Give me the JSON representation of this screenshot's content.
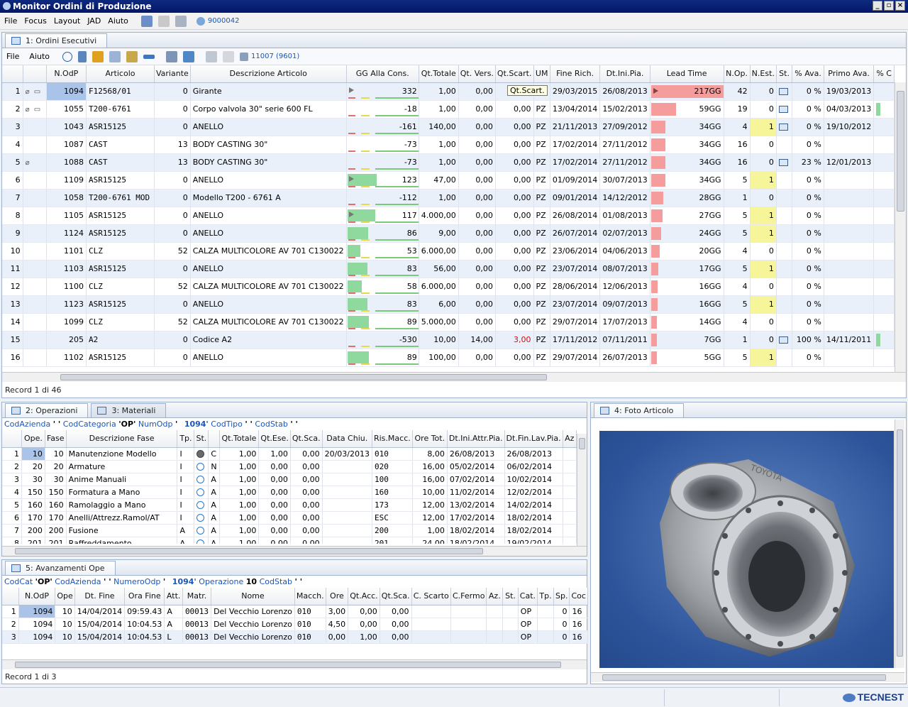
{
  "window": {
    "title": "Monitor Ordini di Produzione"
  },
  "menu": [
    "File",
    "Focus",
    "Layout",
    "JAD",
    "Aiuto"
  ],
  "menu_badge": "9000042",
  "panel1": {
    "tab": "1: Ordini Esecutivi",
    "menu": [
      "File",
      "Aiuto"
    ],
    "badge": "11007 (9601)",
    "status": "Record 1 di 46",
    "tooltip": "Qt.Scart.",
    "columns": [
      "",
      "",
      "N.OdP",
      "Articolo",
      "Variante",
      "Descrizione Articolo",
      "GG Alla Cons.",
      "Qt.Totale",
      "Qt. Vers.",
      "Qt.Scart.",
      "UM",
      "Fine Rich.",
      "Dt.Ini.Pia.",
      "Lead Time",
      "N.Op.",
      "N.Est.",
      "St.",
      "% Ava.",
      "Primo Ava.",
      "% C"
    ],
    "lead_time_sort": "1",
    "rows": [
      {
        "n": "1",
        "odp": "1094",
        "art": "F12568/01",
        "var": "0",
        "desc": "Girante",
        "gg": 332,
        "tot": "1,00",
        "vers": "0,00",
        "scart": "0,00",
        "um": "",
        "fine": "29/03/2015",
        "ini": "26/08/2013",
        "lt": "217GG",
        "ltv": 217,
        "nop": "42",
        "nest": "0",
        "st": "printer",
        "ava": "0 %",
        "primo": "19/03/2013",
        "green": false,
        "yel": false
      },
      {
        "n": "2",
        "odp": "1055",
        "art": "T200-6761",
        "var": "0",
        "desc": "Corpo valvola 30\" serie 600 FL",
        "gg": -18,
        "tot": "1,00",
        "vers": "0,00",
        "scart": "0,00",
        "um": "PZ",
        "fine": "13/04/2014",
        "ini": "15/02/2013",
        "lt": "59GG",
        "ltv": 59,
        "nop": "19",
        "nest": "0",
        "st": "printer",
        "ava": "0 %",
        "primo": "04/03/2013",
        "green": true,
        "yel": false
      },
      {
        "n": "3",
        "odp": "1043",
        "art": "ASR15125",
        "var": "0",
        "desc": "ANELLO",
        "gg": -161,
        "tot": "140,00",
        "vers": "0,00",
        "scart": "0,00",
        "um": "PZ",
        "fine": "21/11/2013",
        "ini": "27/09/2012",
        "lt": "34GG",
        "ltv": 34,
        "nop": "4",
        "nest": "1",
        "st": "printer",
        "ava": "0 %",
        "primo": "19/10/2012",
        "green": false,
        "yel": true
      },
      {
        "n": "4",
        "odp": "1087",
        "art": "CAST",
        "var": "13",
        "desc": "BODY CASTING 30\"",
        "gg": -73,
        "tot": "1,00",
        "vers": "0,00",
        "scart": "0,00",
        "um": "PZ",
        "fine": "17/02/2014",
        "ini": "27/11/2012",
        "lt": "34GG",
        "ltv": 34,
        "nop": "16",
        "nest": "0",
        "st": "",
        "ava": "0 %",
        "primo": "",
        "green": false,
        "yel": false
      },
      {
        "n": "5",
        "odp": "1088",
        "art": "CAST",
        "var": "13",
        "desc": "BODY CASTING 30\"",
        "gg": -73,
        "tot": "1,00",
        "vers": "0,00",
        "scart": "0,00",
        "um": "PZ",
        "fine": "17/02/2014",
        "ini": "27/11/2012",
        "lt": "34GG",
        "ltv": 34,
        "nop": "16",
        "nest": "0",
        "st": "printer",
        "ava": "23 %",
        "primo": "12/01/2013",
        "green": false,
        "yel": false
      },
      {
        "n": "6",
        "odp": "1109",
        "art": "ASR15125",
        "var": "0",
        "desc": "ANELLO",
        "gg": 123,
        "tot": "47,00",
        "vers": "0,00",
        "scart": "0,00",
        "um": "PZ",
        "fine": "01/09/2014",
        "ini": "30/07/2013",
        "lt": "34GG",
        "ltv": 34,
        "nop": "5",
        "nest": "1",
        "st": "",
        "ava": "0 %",
        "primo": "",
        "green": false,
        "yel": true
      },
      {
        "n": "7",
        "odp": "1058",
        "art": "T200-6761 MOD",
        "var": "0",
        "desc": "Modello T200 - 6761 A",
        "gg": -112,
        "tot": "1,00",
        "vers": "0,00",
        "scart": "0,00",
        "um": "PZ",
        "fine": "09/01/2014",
        "ini": "14/12/2012",
        "lt": "28GG",
        "ltv": 28,
        "nop": "1",
        "nest": "0",
        "st": "",
        "ava": "0 %",
        "primo": "",
        "green": false,
        "yel": false
      },
      {
        "n": "8",
        "odp": "1105",
        "art": "ASR15125",
        "var": "0",
        "desc": "ANELLO",
        "gg": 117,
        "tot": "4.000,00",
        "vers": "0,00",
        "scart": "0,00",
        "um": "PZ",
        "fine": "26/08/2014",
        "ini": "01/08/2013",
        "lt": "27GG",
        "ltv": 27,
        "nop": "5",
        "nest": "1",
        "st": "",
        "ava": "0 %",
        "primo": "",
        "green": false,
        "yel": true
      },
      {
        "n": "9",
        "odp": "1124",
        "art": "ASR15125",
        "var": "0",
        "desc": "ANELLO",
        "gg": 86,
        "tot": "9,00",
        "vers": "0,00",
        "scart": "0,00",
        "um": "PZ",
        "fine": "26/07/2014",
        "ini": "02/07/2013",
        "lt": "24GG",
        "ltv": 24,
        "nop": "5",
        "nest": "1",
        "st": "",
        "ava": "0 %",
        "primo": "",
        "green": false,
        "yel": true
      },
      {
        "n": "10",
        "odp": "1101",
        "art": "CLZ",
        "var": "52",
        "desc": "CALZA MULTICOLORE AV 701 C130022",
        "gg": 53,
        "tot": "6.000,00",
        "vers": "0,00",
        "scart": "0,00",
        "um": "PZ",
        "fine": "23/06/2014",
        "ini": "04/06/2013",
        "lt": "20GG",
        "ltv": 20,
        "nop": "4",
        "nest": "0",
        "st": "",
        "ava": "0 %",
        "primo": "",
        "green": false,
        "yel": false
      },
      {
        "n": "11",
        "odp": "1103",
        "art": "ASR15125",
        "var": "0",
        "desc": "ANELLO",
        "gg": 83,
        "tot": "56,00",
        "vers": "0,00",
        "scart": "0,00",
        "um": "PZ",
        "fine": "23/07/2014",
        "ini": "08/07/2013",
        "lt": "17GG",
        "ltv": 17,
        "nop": "5",
        "nest": "1",
        "st": "",
        "ava": "0 %",
        "primo": "",
        "green": false,
        "yel": true
      },
      {
        "n": "12",
        "odp": "1100",
        "art": "CLZ",
        "var": "52",
        "desc": "CALZA MULTICOLORE AV 701 C130022",
        "gg": 58,
        "tot": "6.000,00",
        "vers": "0,00",
        "scart": "0,00",
        "um": "PZ",
        "fine": "28/06/2014",
        "ini": "12/06/2013",
        "lt": "16GG",
        "ltv": 16,
        "nop": "4",
        "nest": "0",
        "st": "",
        "ava": "0 %",
        "primo": "",
        "green": false,
        "yel": false
      },
      {
        "n": "13",
        "odp": "1123",
        "art": "ASR15125",
        "var": "0",
        "desc": "ANELLO",
        "gg": 83,
        "tot": "6,00",
        "vers": "0,00",
        "scart": "0,00",
        "um": "PZ",
        "fine": "23/07/2014",
        "ini": "09/07/2013",
        "lt": "16GG",
        "ltv": 16,
        "nop": "5",
        "nest": "1",
        "st": "",
        "ava": "0 %",
        "primo": "",
        "green": false,
        "yel": true
      },
      {
        "n": "14",
        "odp": "1099",
        "art": "CLZ",
        "var": "52",
        "desc": "CALZA MULTICOLORE AV 701 C130022",
        "gg": 89,
        "tot": "5.000,00",
        "vers": "0,00",
        "scart": "0,00",
        "um": "PZ",
        "fine": "29/07/2014",
        "ini": "17/07/2013",
        "lt": "14GG",
        "ltv": 14,
        "nop": "4",
        "nest": "0",
        "st": "",
        "ava": "0 %",
        "primo": "",
        "green": false,
        "yel": false
      },
      {
        "n": "15",
        "odp": "205",
        "art": "A2",
        "var": "0",
        "desc": "Codice A2",
        "gg": -530,
        "tot": "10,00",
        "vers": "14,00",
        "scart": "3,00",
        "um": "PZ",
        "fine": "17/11/2012",
        "ini": "07/11/2011",
        "lt": "7GG",
        "ltv": 7,
        "nop": "1",
        "nest": "0",
        "st": "printer",
        "ava": "100 %",
        "primo": "14/11/2011",
        "green": true,
        "yel": false
      },
      {
        "n": "16",
        "odp": "1102",
        "art": "ASR15125",
        "var": "0",
        "desc": "ANELLO",
        "gg": 89,
        "tot": "100,00",
        "vers": "0,00",
        "scart": "0,00",
        "um": "PZ",
        "fine": "29/07/2014",
        "ini": "26/07/2013",
        "lt": "5GG",
        "ltv": 5,
        "nop": "5",
        "nest": "1",
        "st": "",
        "ava": "0 %",
        "primo": "",
        "green": false,
        "yel": true
      }
    ]
  },
  "panel2": {
    "tabs": [
      "2: Operazioni",
      "3: Materiali"
    ],
    "filter": [
      {
        "k": "CodAzienda",
        "v": "' '"
      },
      {
        "k": "CodCategoria",
        "v": "'OP'"
      },
      {
        "k": "NumOdp",
        "v": "'"
      },
      {
        "k": "",
        "v": "1094'"
      },
      {
        "k": "CodTipo",
        "v": "' '"
      },
      {
        "k": "CodStab",
        "v": "' '"
      }
    ],
    "columns": [
      "",
      "Ope.",
      "Fase",
      "Descrizione Fase",
      "Tp.",
      "St.",
      "",
      "Qt.Totale",
      "Qt.Ese.",
      "Qt.Sca.",
      "Data Chiu.",
      "Ris.Macc.",
      "Ore Tot.",
      "Dt.Ini.Attr.Pia.",
      "Dt.Fin.Lav.Pia.",
      "Az"
    ],
    "rows": [
      {
        "n": "1",
        "ope": "10",
        "fase": "10",
        "desc": "Manutenzione Modello",
        "tp": "I",
        "full": true,
        "st": "C",
        "tot": "1,00",
        "ese": "1,00",
        "sca": "0,00",
        "chiu": "20/03/2013",
        "ris": "010",
        "ore": "8,00",
        "ini": "26/08/2013",
        "fin": "26/08/2013"
      },
      {
        "n": "2",
        "ope": "20",
        "fase": "20",
        "desc": "Armature",
        "tp": "I",
        "full": false,
        "st": "N",
        "tot": "1,00",
        "ese": "0,00",
        "sca": "0,00",
        "chiu": "",
        "ris": "020",
        "ore": "16,00",
        "ini": "05/02/2014",
        "fin": "06/02/2014"
      },
      {
        "n": "3",
        "ope": "30",
        "fase": "30",
        "desc": "Anime Manuali",
        "tp": "I",
        "full": false,
        "st": "A",
        "tot": "1,00",
        "ese": "0,00",
        "sca": "0,00",
        "chiu": "",
        "ris": "100",
        "ore": "16,00",
        "ini": "07/02/2014",
        "fin": "10/02/2014"
      },
      {
        "n": "4",
        "ope": "150",
        "fase": "150",
        "desc": "Formatura a Mano",
        "tp": "I",
        "full": false,
        "st": "A",
        "tot": "1,00",
        "ese": "0,00",
        "sca": "0,00",
        "chiu": "",
        "ris": "160",
        "ore": "10,00",
        "ini": "11/02/2014",
        "fin": "12/02/2014"
      },
      {
        "n": "5",
        "ope": "160",
        "fase": "160",
        "desc": "Ramolaggio a Mano",
        "tp": "I",
        "full": false,
        "st": "A",
        "tot": "1,00",
        "ese": "0,00",
        "sca": "0,00",
        "chiu": "",
        "ris": "173",
        "ore": "12,00",
        "ini": "13/02/2014",
        "fin": "14/02/2014"
      },
      {
        "n": "6",
        "ope": "170",
        "fase": "170",
        "desc": "Anelli/Attrezz.Ramol/AT",
        "tp": "I",
        "full": false,
        "st": "A",
        "tot": "1,00",
        "ese": "0,00",
        "sca": "0,00",
        "chiu": "",
        "ris": "ESC",
        "ore": "12,00",
        "ini": "17/02/2014",
        "fin": "18/02/2014"
      },
      {
        "n": "7",
        "ope": "200",
        "fase": "200",
        "desc": "Fusione",
        "tp": "A",
        "full": false,
        "st": "A",
        "tot": "1,00",
        "ese": "0,00",
        "sca": "0,00",
        "chiu": "",
        "ris": "200",
        "ore": "1,00",
        "ini": "18/02/2014",
        "fin": "18/02/2014"
      },
      {
        "n": "8",
        "ope": "201",
        "fase": "201",
        "desc": "Raffreddamento",
        "tp": "A",
        "full": false,
        "st": "A",
        "tot": "1,00",
        "ese": "0,00",
        "sca": "0,00",
        "chiu": "",
        "ris": "201",
        "ore": "24,00",
        "ini": "18/02/2014",
        "fin": "19/02/2014"
      }
    ]
  },
  "panel5": {
    "tab": "5: Avanzamenti Ope",
    "filter": [
      {
        "k": "CodCat",
        "v": "'OP'"
      },
      {
        "k": "CodAzienda",
        "v": "' '"
      },
      {
        "k": "NumeroOdp",
        "v": "'"
      },
      {
        "k": "",
        "v": "1094'"
      },
      {
        "k": "Operazione",
        "v": "10"
      },
      {
        "k": "CodStab",
        "v": "' '"
      }
    ],
    "columns": [
      "",
      "N.OdP",
      "Ope",
      "Dt. Fine",
      "Ora Fine",
      "Att.",
      "Matr.",
      "Nome",
      "Macch.",
      "Ore",
      "Qt.Acc.",
      "Qt.Sca.",
      "C. Scarto",
      "C.Fermo",
      "Az.",
      "St.",
      "Cat.",
      "Tp.",
      "Sp.",
      "Coc"
    ],
    "rows": [
      {
        "n": "1",
        "odp": "1094",
        "ope": "10",
        "dt": "14/04/2014",
        "ora": "09:59.43",
        "att": "A",
        "matr": "00013",
        "nome": "Del Vecchio Lorenzo",
        "mac": "010",
        "ore": "3,00",
        "acc": "0,00",
        "sca": "0,00",
        "cat": "OP",
        "sp": "0",
        "coc": "16"
      },
      {
        "n": "2",
        "odp": "1094",
        "ope": "10",
        "dt": "15/04/2014",
        "ora": "10:04.53",
        "att": "A",
        "matr": "00013",
        "nome": "Del Vecchio Lorenzo",
        "mac": "010",
        "ore": "4,50",
        "acc": "0,00",
        "sca": "0,00",
        "cat": "OP",
        "sp": "0",
        "coc": "16"
      },
      {
        "n": "3",
        "odp": "1094",
        "ope": "10",
        "dt": "15/04/2014",
        "ora": "10:04.53",
        "att": "L",
        "matr": "00013",
        "nome": "Del Vecchio Lorenzo",
        "mac": "010",
        "ore": "0,00",
        "acc": "1,00",
        "sca": "0,00",
        "cat": "OP",
        "sp": "0",
        "coc": "16"
      }
    ],
    "status": "Record 1 di 3"
  },
  "panel4": {
    "tab": "4: Foto Articolo",
    "photo_label": "TOYOTA"
  },
  "footer": {
    "brand": "TECNEST"
  },
  "colors": {
    "green_bar": "#8fd99f",
    "red_bar": "#f59c9c",
    "yellow": "#f7f59a",
    "accent": "#1a55b8"
  }
}
